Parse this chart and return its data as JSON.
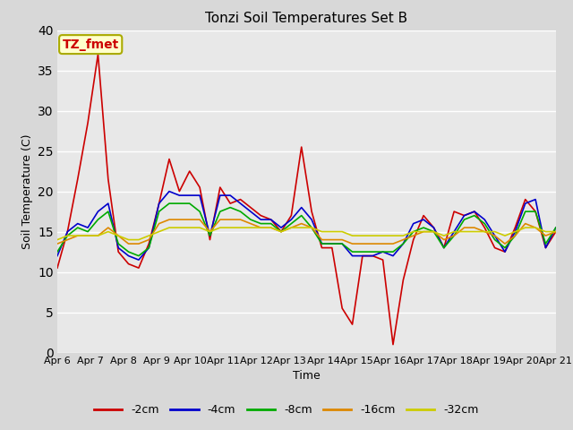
{
  "title": "Tonzi Soil Temperatures Set B",
  "xlabel": "Time",
  "ylabel": "Soil Temperature (C)",
  "ylim": [
    0,
    40
  ],
  "outer_bg": "#d8d8d8",
  "plot_bg": "#e8e8e8",
  "legend_label": "TZ_fmet",
  "legend_box_facecolor": "#ffffcc",
  "legend_box_edgecolor": "#aaaa00",
  "grid_color": "#ffffff",
  "series_order": [
    "-2cm",
    "-4cm",
    "-8cm",
    "-16cm",
    "-32cm"
  ],
  "series": {
    "-2cm": {
      "color": "#cc0000",
      "values": [
        10.5,
        15.0,
        21.5,
        28.5,
        37.0,
        21.5,
        12.5,
        11.0,
        10.5,
        13.5,
        18.5,
        24.0,
        20.0,
        22.5,
        20.5,
        14.0,
        20.5,
        18.5,
        19.0,
        18.0,
        17.0,
        16.5,
        15.0,
        17.0,
        25.5,
        17.5,
        13.0,
        13.0,
        5.5,
        3.5,
        12.0,
        12.0,
        11.5,
        1.0,
        9.0,
        14.0,
        17.0,
        15.5,
        13.0,
        17.5,
        17.0,
        17.5,
        15.5,
        13.0,
        12.5,
        15.5,
        19.0,
        17.5,
        13.0,
        15.0
      ]
    },
    "-4cm": {
      "color": "#0000cc",
      "values": [
        12.0,
        15.0,
        16.0,
        15.5,
        17.5,
        18.5,
        13.0,
        12.0,
        11.5,
        13.0,
        18.5,
        20.0,
        19.5,
        19.5,
        19.5,
        14.5,
        19.5,
        19.5,
        18.5,
        17.5,
        16.5,
        16.5,
        15.5,
        16.5,
        18.0,
        16.5,
        13.5,
        13.5,
        13.5,
        12.0,
        12.0,
        12.0,
        12.5,
        12.0,
        13.5,
        16.0,
        16.5,
        15.5,
        13.0,
        15.0,
        17.0,
        17.5,
        16.5,
        14.5,
        12.5,
        15.0,
        18.5,
        19.0,
        13.0,
        15.5
      ]
    },
    "-8cm": {
      "color": "#00aa00",
      "values": [
        12.5,
        14.5,
        15.5,
        15.0,
        16.5,
        17.5,
        13.5,
        12.5,
        12.0,
        13.0,
        17.5,
        18.5,
        18.5,
        18.5,
        17.5,
        14.5,
        17.5,
        18.0,
        17.5,
        16.5,
        16.0,
        16.0,
        15.0,
        16.0,
        17.0,
        15.5,
        13.5,
        13.5,
        13.5,
        12.5,
        12.5,
        12.5,
        12.5,
        12.5,
        13.5,
        15.0,
        15.5,
        15.0,
        13.0,
        14.5,
        16.5,
        17.0,
        16.0,
        14.0,
        13.0,
        14.5,
        17.5,
        17.5,
        13.5,
        15.5
      ]
    },
    "-16cm": {
      "color": "#dd8800",
      "values": [
        13.5,
        14.0,
        14.5,
        14.5,
        14.5,
        15.5,
        14.5,
        13.5,
        13.5,
        14.0,
        16.0,
        16.5,
        16.5,
        16.5,
        16.5,
        15.0,
        16.5,
        16.5,
        16.5,
        16.0,
        15.5,
        15.5,
        15.0,
        15.5,
        16.0,
        15.5,
        14.0,
        14.0,
        14.0,
        13.5,
        13.5,
        13.5,
        13.5,
        13.5,
        14.0,
        14.5,
        15.0,
        15.0,
        14.0,
        14.5,
        15.5,
        15.5,
        15.0,
        14.5,
        13.5,
        14.5,
        16.0,
        15.5,
        14.5,
        15.0
      ]
    },
    "-32cm": {
      "color": "#cccc00",
      "values": [
        14.0,
        14.5,
        14.5,
        14.5,
        14.5,
        15.0,
        14.5,
        14.0,
        14.0,
        14.5,
        15.0,
        15.5,
        15.5,
        15.5,
        15.5,
        15.0,
        15.5,
        15.5,
        15.5,
        15.5,
        15.5,
        15.5,
        15.0,
        15.5,
        15.5,
        15.5,
        15.0,
        15.0,
        15.0,
        14.5,
        14.5,
        14.5,
        14.5,
        14.5,
        14.5,
        15.0,
        15.0,
        15.0,
        14.5,
        15.0,
        15.0,
        15.0,
        15.0,
        15.0,
        14.5,
        15.0,
        15.5,
        15.5,
        15.0,
        15.0
      ]
    }
  },
  "x_tick_labels": [
    "Apr 6",
    "Apr 7",
    "Apr 8",
    "Apr 9",
    "Apr 10",
    "Apr 11",
    "Apr 12",
    "Apr 13",
    "Apr 14",
    "Apr 15",
    "Apr 16",
    "Apr 17",
    "Apr 18",
    "Apr 19",
    "Apr 20",
    "Apr 21"
  ],
  "n_points": 50,
  "title_fontsize": 11,
  "axis_label_fontsize": 9,
  "tick_fontsize": 8,
  "linewidth": 1.2
}
